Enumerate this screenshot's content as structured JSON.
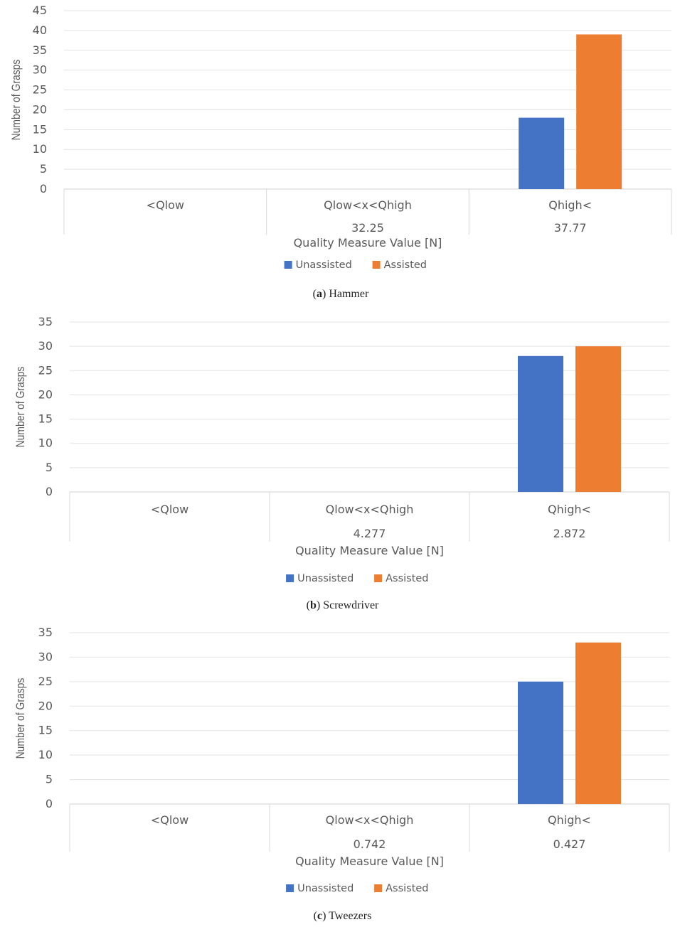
{
  "chart_data": [
    {
      "type": "bar",
      "caption_letter": "a",
      "caption_text": "Hammer",
      "categories": [
        "<Qlow",
        "Qlow<x<Qhigh",
        "Qhigh<"
      ],
      "category_values": [
        "",
        "32.25",
        "37.77"
      ],
      "series": [
        {
          "name": "Unassisted",
          "color": "#4472C4",
          "values": [
            0,
            0,
            18
          ]
        },
        {
          "name": "Assisted",
          "color": "#ED7D31",
          "values": [
            0,
            0,
            39
          ]
        }
      ],
      "ylim": [
        0,
        45
      ],
      "ytick_step": 5,
      "xlabel": "Quality Measure Value [N]",
      "ylabel": "Number of Grasps",
      "legend": "bottom",
      "grid": true
    },
    {
      "type": "bar",
      "caption_letter": "b",
      "caption_text": "Screwdriver",
      "categories": [
        "<Qlow",
        "Qlow<x<Qhigh",
        "Qhigh<"
      ],
      "category_values": [
        "",
        "4.277",
        "2.872"
      ],
      "series": [
        {
          "name": "Unassisted",
          "color": "#4472C4",
          "values": [
            0,
            0,
            28
          ]
        },
        {
          "name": "Assisted",
          "color": "#ED7D31",
          "values": [
            0,
            0,
            30
          ]
        }
      ],
      "ylim": [
        0,
        35
      ],
      "ytick_step": 5,
      "xlabel": "Quality Measure Value [N]",
      "ylabel": "Number of Grasps",
      "legend": "bottom",
      "grid": true
    },
    {
      "type": "bar",
      "caption_letter": "c",
      "caption_text": "Tweezers",
      "categories": [
        "<Qlow",
        "Qlow<x<Qhigh",
        "Qhigh<"
      ],
      "category_values": [
        "",
        "0.742",
        "0.427"
      ],
      "series": [
        {
          "name": "Unassisted",
          "color": "#4472C4",
          "values": [
            0,
            0,
            25
          ]
        },
        {
          "name": "Assisted",
          "color": "#ED7D31",
          "values": [
            0,
            0,
            33
          ]
        }
      ],
      "ylim": [
        0,
        35
      ],
      "ytick_step": 5,
      "xlabel": "Quality Measure Value [N]",
      "ylabel": "Number of Grasps",
      "legend": "bottom",
      "grid": true
    }
  ]
}
